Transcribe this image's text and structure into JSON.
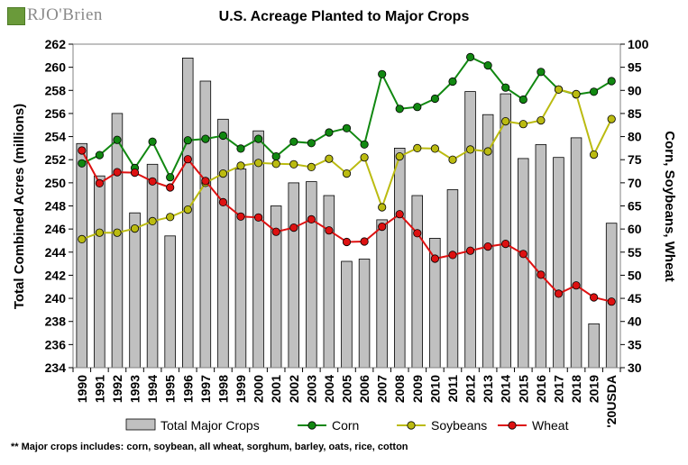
{
  "logo": {
    "text": "RJO'Brien",
    "icon": "rjobrien-logo-icon"
  },
  "chart_data": {
    "type": "bar+line",
    "title": "U.S. Acreage Planted to Major Crops",
    "categories": [
      "1990",
      "1991",
      "1992",
      "1993",
      "1994",
      "1995",
      "1996",
      "1997",
      "1998",
      "1999",
      "2000",
      "2001",
      "2002",
      "2003",
      "2004",
      "2005",
      "2006",
      "2007",
      "2008",
      "2009",
      "2010",
      "2011",
      "2012",
      "2013",
      "2014",
      "2015",
      "2016",
      "2017",
      "2018",
      "2019",
      "'20USDA"
    ],
    "ylabel_left": "Total Combined Acres (millions)",
    "ylabel_right": "Corn, Soybeans, Wheat",
    "ylim_left": [
      234,
      262
    ],
    "yticks_left": [
      234,
      236,
      238,
      240,
      242,
      244,
      246,
      248,
      250,
      252,
      254,
      256,
      258,
      260,
      262
    ],
    "ylim_right": [
      30,
      100
    ],
    "yticks_right": [
      30,
      35,
      40,
      45,
      50,
      55,
      60,
      65,
      70,
      75,
      80,
      85,
      90,
      95,
      100
    ],
    "bars": {
      "name": "Total Major Crops",
      "axis": "left",
      "color": "#c0c0c0",
      "values": [
        253.4,
        250.6,
        256.0,
        247.4,
        251.6,
        245.4,
        260.8,
        258.8,
        255.5,
        251.2,
        254.5,
        248.0,
        250.0,
        250.1,
        248.9,
        243.2,
        243.4,
        246.8,
        253.0,
        248.9,
        245.2,
        249.4,
        257.9,
        255.9,
        257.7,
        252.1,
        253.3,
        252.2,
        253.9,
        237.8,
        246.5
      ]
    },
    "series": [
      {
        "name": "Corn",
        "axis": "right",
        "color": "#118811",
        "values": [
          74.2,
          76.0,
          79.3,
          73.2,
          78.9,
          71.2,
          79.2,
          79.5,
          80.2,
          77.4,
          79.5,
          75.7,
          78.9,
          78.6,
          80.9,
          81.8,
          78.3,
          93.5,
          86.0,
          86.4,
          88.2,
          91.9,
          97.2,
          95.4,
          90.6,
          88.0,
          94.0,
          90.2,
          89.1,
          89.7,
          92.0
        ]
      },
      {
        "name": "Soybeans",
        "axis": "right",
        "color": "#bbbb11",
        "values": [
          57.8,
          59.2,
          59.2,
          60.1,
          61.7,
          62.6,
          64.2,
          70.0,
          72.0,
          73.7,
          74.3,
          74.1,
          74.0,
          73.4,
          75.2,
          72.0,
          75.5,
          64.7,
          75.7,
          77.5,
          77.4,
          75.0,
          77.2,
          76.8,
          83.3,
          82.7,
          83.5,
          90.2,
          89.2,
          76.1,
          83.8
        ]
      },
      {
        "name": "Wheat",
        "axis": "right",
        "color": "#dd1111",
        "values": [
          77.0,
          69.9,
          72.3,
          72.2,
          70.3,
          69.0,
          75.1,
          70.4,
          65.8,
          62.7,
          62.5,
          59.4,
          60.3,
          62.1,
          59.7,
          57.2,
          57.3,
          60.5,
          63.2,
          59.1,
          53.6,
          54.4,
          55.3,
          56.2,
          56.8,
          54.6,
          50.1,
          46.0,
          47.8,
          45.2,
          44.3
        ]
      }
    ],
    "legend_placement": "bottom",
    "grid": false
  },
  "note": "** Major crops includes: corn, soybean, all wheat, sorghum, barley, oats, rice, cotton"
}
